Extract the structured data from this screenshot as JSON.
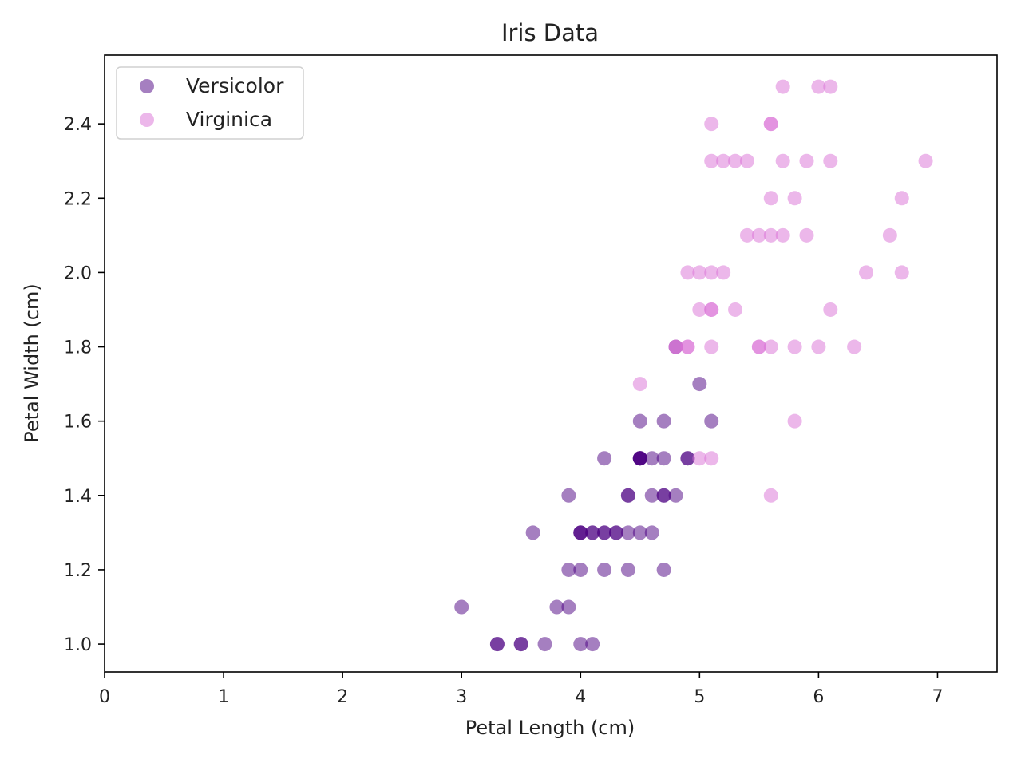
{
  "chart_data": {
    "type": "scatter",
    "title": "Iris Data",
    "xlabel": "Petal Length (cm)",
    "ylabel": "Petal Width (cm)",
    "xlim": [
      0,
      7.5
    ],
    "ylim": [
      0.925,
      2.585
    ],
    "x_ticks": [
      0,
      1,
      2,
      3,
      4,
      5,
      6,
      7
    ],
    "x_tick_labels": [
      "0",
      "1",
      "2",
      "3",
      "4",
      "5",
      "6",
      "7"
    ],
    "y_ticks": [
      1.0,
      1.2,
      1.4,
      1.6,
      1.8,
      2.0,
      2.2,
      2.4
    ],
    "y_tick_labels": [
      "1.0",
      "1.2",
      "1.4",
      "1.6",
      "1.8",
      "2.0",
      "2.2",
      "2.4"
    ],
    "grid": false,
    "legend_position": "top-left",
    "series": [
      {
        "name": "Versicolor",
        "color": "#4b0082",
        "alpha": 0.5,
        "points": [
          [
            4.7,
            1.4
          ],
          [
            4.5,
            1.5
          ],
          [
            4.9,
            1.5
          ],
          [
            4.0,
            1.3
          ],
          [
            4.6,
            1.5
          ],
          [
            4.5,
            1.3
          ],
          [
            4.7,
            1.6
          ],
          [
            3.3,
            1.0
          ],
          [
            4.6,
            1.3
          ],
          [
            3.9,
            1.4
          ],
          [
            3.5,
            1.0
          ],
          [
            4.2,
            1.5
          ],
          [
            4.0,
            1.0
          ],
          [
            4.7,
            1.4
          ],
          [
            3.6,
            1.3
          ],
          [
            4.4,
            1.4
          ],
          [
            4.5,
            1.5
          ],
          [
            4.1,
            1.0
          ],
          [
            4.5,
            1.5
          ],
          [
            3.9,
            1.1
          ],
          [
            4.8,
            1.8
          ],
          [
            4.0,
            1.3
          ],
          [
            4.9,
            1.5
          ],
          [
            4.7,
            1.2
          ],
          [
            4.3,
            1.3
          ],
          [
            4.4,
            1.4
          ],
          [
            4.8,
            1.4
          ],
          [
            5.0,
            1.7
          ],
          [
            4.5,
            1.5
          ],
          [
            3.5,
            1.0
          ],
          [
            3.8,
            1.1
          ],
          [
            3.7,
            1.0
          ],
          [
            3.9,
            1.2
          ],
          [
            5.1,
            1.6
          ],
          [
            4.5,
            1.5
          ],
          [
            4.5,
            1.6
          ],
          [
            4.7,
            1.5
          ],
          [
            4.4,
            1.3
          ],
          [
            4.1,
            1.3
          ],
          [
            4.0,
            1.3
          ],
          [
            4.4,
            1.2
          ],
          [
            4.6,
            1.4
          ],
          [
            4.0,
            1.2
          ],
          [
            3.3,
            1.0
          ],
          [
            4.2,
            1.3
          ],
          [
            4.2,
            1.2
          ],
          [
            4.2,
            1.3
          ],
          [
            4.3,
            1.3
          ],
          [
            3.0,
            1.1
          ],
          [
            4.1,
            1.3
          ]
        ]
      },
      {
        "name": "Virginica",
        "color": "#da70d6",
        "alpha": 0.5,
        "points": [
          [
            6.0,
            2.5
          ],
          [
            5.1,
            1.9
          ],
          [
            5.9,
            2.1
          ],
          [
            5.6,
            1.8
          ],
          [
            5.8,
            2.2
          ],
          [
            6.6,
            2.1
          ],
          [
            4.5,
            1.7
          ],
          [
            6.3,
            1.8
          ],
          [
            5.8,
            1.8
          ],
          [
            6.1,
            2.5
          ],
          [
            5.1,
            2.0
          ],
          [
            5.3,
            1.9
          ],
          [
            5.5,
            2.1
          ],
          [
            5.0,
            2.0
          ],
          [
            5.1,
            2.4
          ],
          [
            5.3,
            2.3
          ],
          [
            5.5,
            1.8
          ],
          [
            6.7,
            2.2
          ],
          [
            6.9,
            2.3
          ],
          [
            5.0,
            1.5
          ],
          [
            5.7,
            2.3
          ],
          [
            4.9,
            2.0
          ],
          [
            6.7,
            2.0
          ],
          [
            4.9,
            1.8
          ],
          [
            5.7,
            2.1
          ],
          [
            6.0,
            1.8
          ],
          [
            4.8,
            1.8
          ],
          [
            4.9,
            1.8
          ],
          [
            5.6,
            2.1
          ],
          [
            5.8,
            1.6
          ],
          [
            6.1,
            1.9
          ],
          [
            6.4,
            2.0
          ],
          [
            5.6,
            2.2
          ],
          [
            5.1,
            1.5
          ],
          [
            5.6,
            1.4
          ],
          [
            6.1,
            2.3
          ],
          [
            5.6,
            2.4
          ],
          [
            5.5,
            1.8
          ],
          [
            4.8,
            1.8
          ],
          [
            5.4,
            2.1
          ],
          [
            5.6,
            2.4
          ],
          [
            5.1,
            2.3
          ],
          [
            5.1,
            1.9
          ],
          [
            5.9,
            2.3
          ],
          [
            5.7,
            2.5
          ],
          [
            5.2,
            2.3
          ],
          [
            5.0,
            1.9
          ],
          [
            5.2,
            2.0
          ],
          [
            5.4,
            2.3
          ],
          [
            5.1,
            1.8
          ]
        ]
      }
    ]
  }
}
